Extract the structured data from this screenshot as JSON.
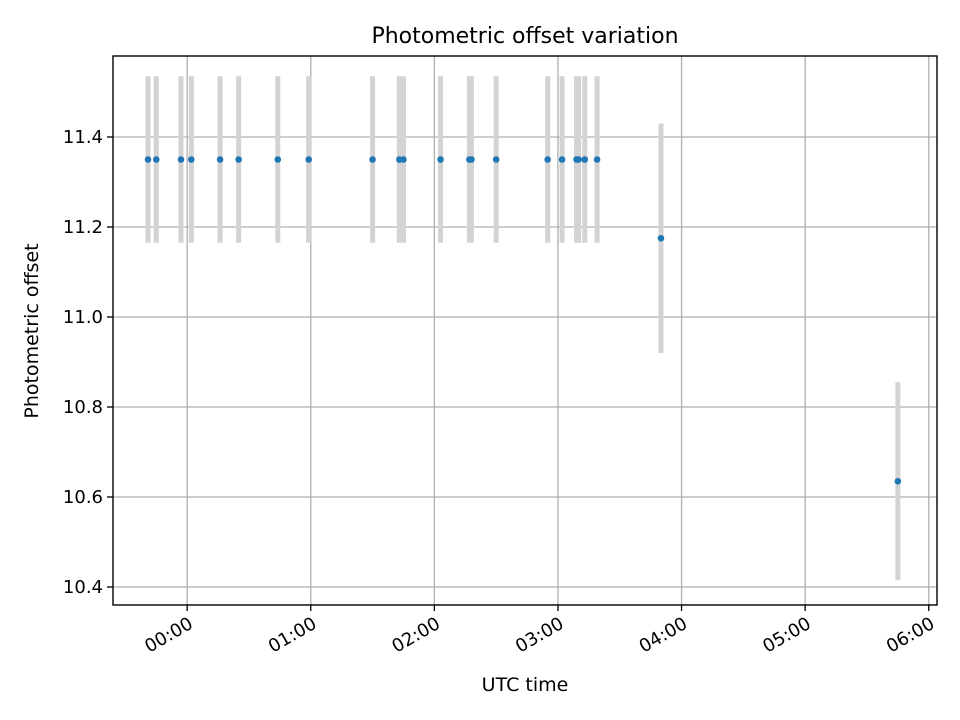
{
  "chart_data": {
    "type": "scatter",
    "title": "Photometric offset variation",
    "xlabel": "UTC time",
    "ylabel": "Photometric offset",
    "x_unit": "UTC clock time (hh:mm)",
    "xlim": [
      "23:24",
      "06:04"
    ],
    "ylim": [
      10.36,
      11.58
    ],
    "xticks": [
      "00:00",
      "01:00",
      "02:00",
      "03:00",
      "04:00",
      "05:00",
      "06:00"
    ],
    "yticks": [
      10.4,
      10.6,
      10.8,
      11.0,
      11.2,
      11.4
    ],
    "grid": true,
    "series": [
      {
        "points": [
          {
            "x": "23:41",
            "y": 11.35,
            "err": 0.185
          },
          {
            "x": "23:45",
            "y": 11.35,
            "err": 0.185
          },
          {
            "x": "23:57",
            "y": 11.35,
            "err": 0.185
          },
          {
            "x": "00:02",
            "y": 11.35,
            "err": 0.185
          },
          {
            "x": "00:16",
            "y": 11.35,
            "err": 0.185
          },
          {
            "x": "00:25",
            "y": 11.35,
            "err": 0.185
          },
          {
            "x": "00:44",
            "y": 11.35,
            "err": 0.185
          },
          {
            "x": "00:59",
            "y": 11.35,
            "err": 0.185
          },
          {
            "x": "01:30",
            "y": 11.35,
            "err": 0.185
          },
          {
            "x": "01:43",
            "y": 11.35,
            "err": 0.185
          },
          {
            "x": "01:45",
            "y": 11.35,
            "err": 0.185
          },
          {
            "x": "02:03",
            "y": 11.35,
            "err": 0.185
          },
          {
            "x": "02:17",
            "y": 11.35,
            "err": 0.185
          },
          {
            "x": "02:18",
            "y": 11.35,
            "err": 0.185
          },
          {
            "x": "02:30",
            "y": 11.35,
            "err": 0.185
          },
          {
            "x": "02:55",
            "y": 11.35,
            "err": 0.185
          },
          {
            "x": "03:02",
            "y": 11.35,
            "err": 0.185
          },
          {
            "x": "03:09",
            "y": 11.35,
            "err": 0.185
          },
          {
            "x": "03:10",
            "y": 11.35,
            "err": 0.185
          },
          {
            "x": "03:13",
            "y": 11.35,
            "err": 0.185
          },
          {
            "x": "03:19",
            "y": 11.35,
            "err": 0.185
          },
          {
            "x": "03:50",
            "y": 11.175,
            "err": 0.255
          },
          {
            "x": "05:45",
            "y": 10.635,
            "err": 0.22
          }
        ]
      }
    ],
    "colors": {
      "marker": "#1f77b4",
      "errorbar": "#d3d3d3",
      "grid": "#b0b0b0",
      "axes": "#000000"
    }
  }
}
